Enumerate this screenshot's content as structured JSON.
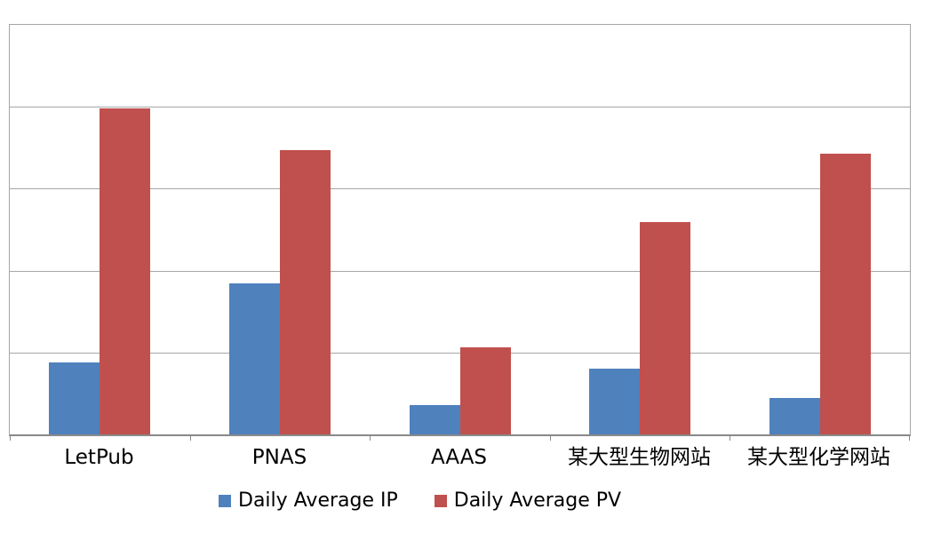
{
  "chart_data": {
    "type": "bar",
    "categories": [
      "LetPub",
      "PNAS",
      "AAAS",
      "某大型生物网站",
      "某大型化学网站"
    ],
    "series": [
      {
        "name": "Daily Average IP",
        "color": "#4F81BD",
        "values": [
          0.88,
          1.84,
          0.36,
          0.8,
          0.44
        ]
      },
      {
        "name": "Daily Average PV",
        "color": "#C0504D",
        "values": [
          3.98,
          3.47,
          1.06,
          2.59,
          3.43
        ]
      }
    ],
    "title": "",
    "xlabel": "",
    "ylabel": "",
    "ylim": [
      0,
      5
    ],
    "y_tick_labels_visible": false,
    "gridlines": "horizontal",
    "gridline_color": "#A6A6A6",
    "axis_color": "#898989",
    "bar_color_ip": "#4F81BD",
    "bar_color_pv": "#C0504D",
    "legend_position": "bottom"
  }
}
